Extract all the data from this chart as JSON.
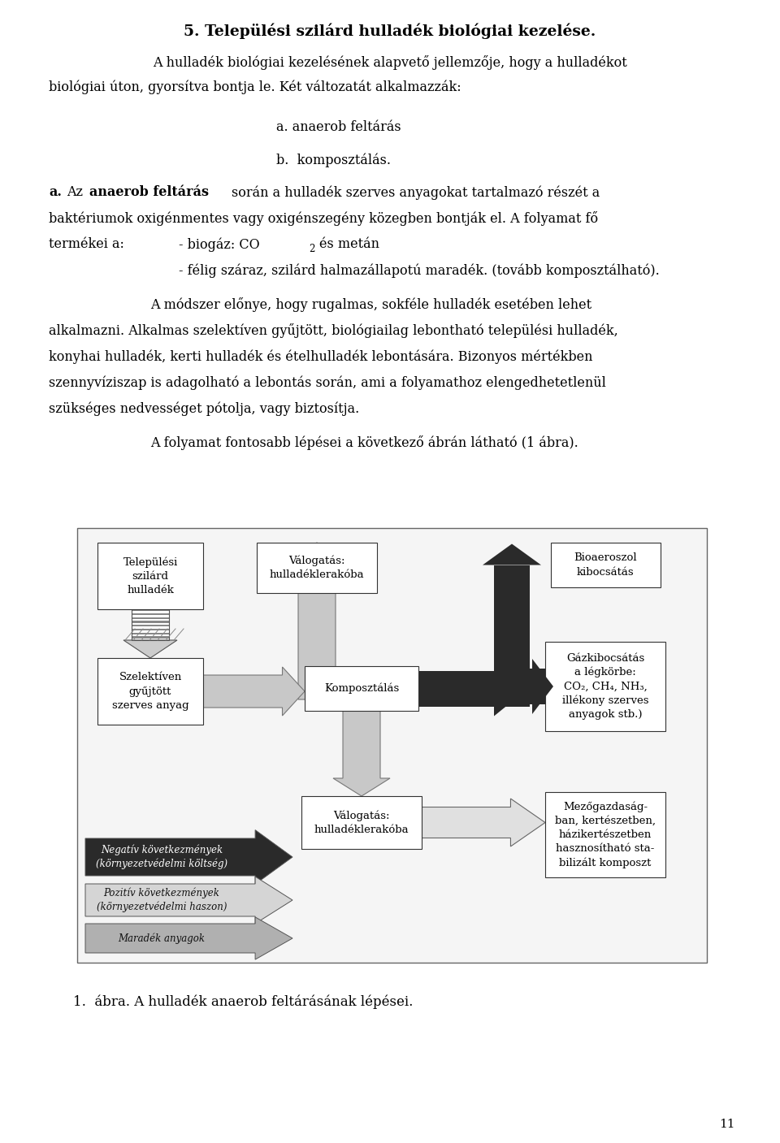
{
  "bg_color": "#ffffff",
  "title": "5. Települési szilárd hulladék biológiai kezelése.",
  "page_number": "11",
  "caption": "1.  ábra. A hulladék anaerob feltárásának lépései."
}
